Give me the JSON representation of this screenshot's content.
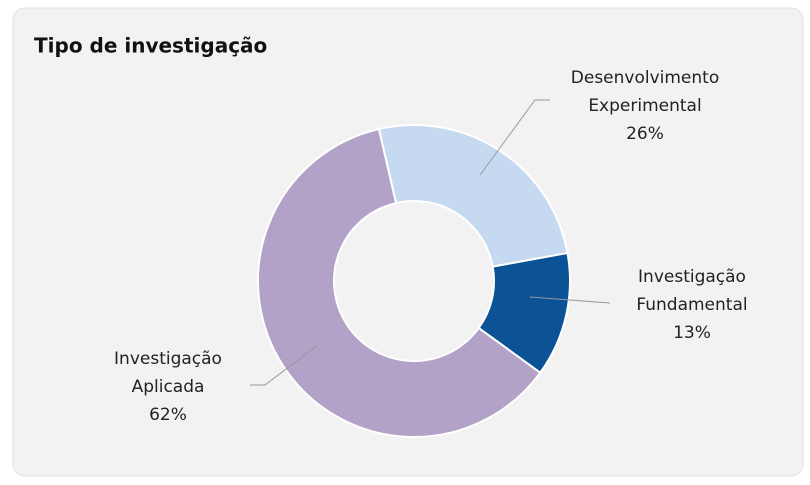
{
  "chart_data": {
    "type": "donut",
    "title": "Tipo de investigação",
    "categories": [
      "Desenvolvimento Experimental",
      "Investigação Fundamental",
      "Investigação Aplicada"
    ],
    "values": [
      26,
      13,
      62
    ],
    "value_labels": [
      "26%",
      "13%",
      "62%"
    ],
    "colors": [
      "#c5d9f1",
      "#0b5296",
      "#b3a2c7"
    ]
  }
}
